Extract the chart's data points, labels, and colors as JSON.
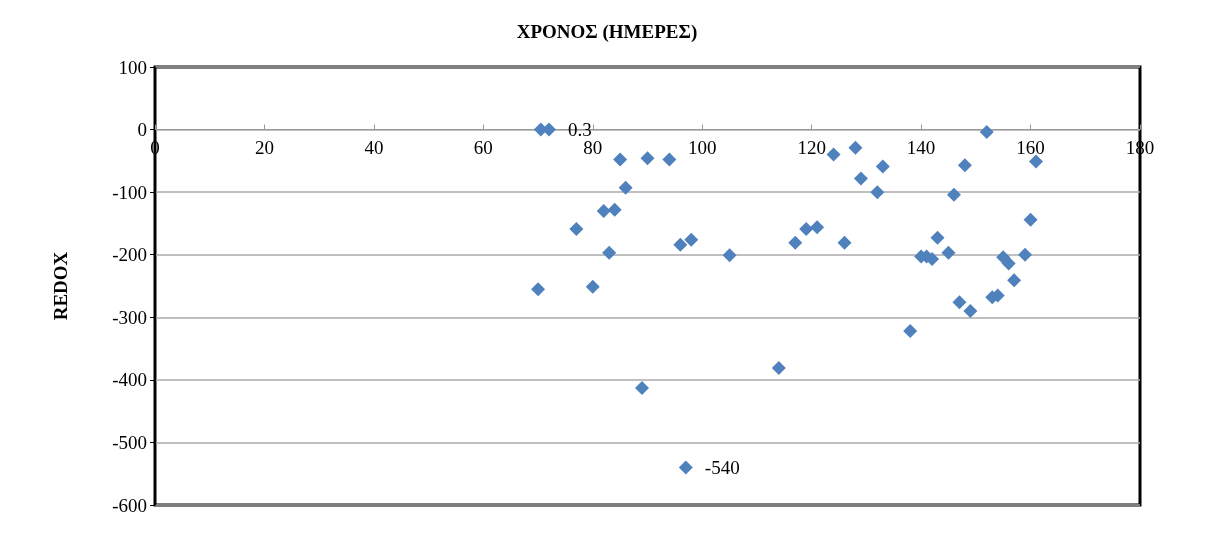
{
  "chart_data": {
    "type": "scatter",
    "xlabel": "ΧΡΟΝΟΣ (ΗΜΕΡΕΣ)",
    "ylabel": "REDOX",
    "xlim": [
      0,
      180
    ],
    "xticks": [
      0,
      20,
      40,
      60,
      80,
      100,
      120,
      140,
      160,
      180
    ],
    "ylim": [
      -600,
      100
    ],
    "yticks": [
      -600,
      -500,
      -400,
      -300,
      -200,
      -100,
      0,
      100
    ],
    "grid": "y",
    "marker": "diamond",
    "series": [
      {
        "color": "#4f81bd",
        "x": [
          70.5,
          72,
          70,
          77,
          80,
          82,
          84,
          83,
          85,
          86,
          90,
          94,
          96,
          98,
          89,
          105,
          114,
          97,
          117,
          119,
          121,
          124,
          126,
          128,
          129,
          132,
          133,
          138,
          140,
          141,
          142,
          143,
          145,
          146,
          147,
          148,
          149,
          152,
          153,
          154,
          155,
          156,
          157,
          159,
          160,
          161
        ],
        "values": [
          0,
          0.3,
          -255,
          -159,
          -251,
          -130,
          -128,
          -197,
          -48,
          -93,
          -46,
          -48,
          -184,
          -176,
          -413,
          -201,
          -381,
          -540,
          -181,
          -159,
          -156,
          -40,
          -181,
          -29,
          -78,
          -100,
          -59,
          -322,
          -203,
          -203,
          -207,
          -173,
          -197,
          -104,
          -276,
          -57,
          -290,
          -4,
          -268,
          -265,
          -204,
          -214,
          -241,
          -200,
          -144,
          -51
        ],
        "value_labels": [
          null,
          "0.3",
          null,
          null,
          null,
          null,
          null,
          null,
          null,
          null,
          null,
          null,
          null,
          null,
          null,
          null,
          null,
          "-540",
          null,
          null,
          null,
          null,
          null,
          null,
          null,
          null,
          null,
          null,
          null,
          null,
          null,
          null,
          null,
          null,
          null,
          null,
          null,
          null,
          null,
          null,
          null,
          null,
          null,
          null,
          null,
          null
        ]
      }
    ]
  }
}
